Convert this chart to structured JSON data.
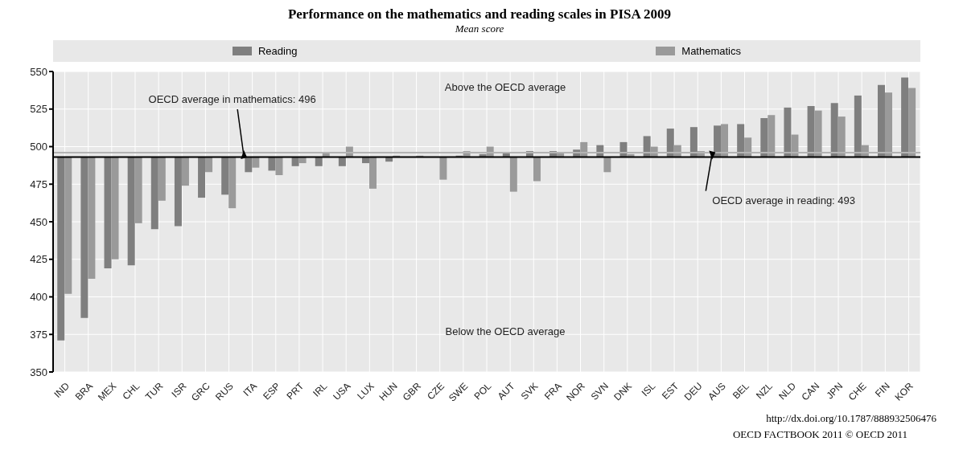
{
  "chart_data": {
    "type": "bar",
    "title": "Performance on the mathematics and reading scales in PISA 2009",
    "subtitle": "Mean score",
    "categories": [
      "IND",
      "BRA",
      "MEX",
      "CHL",
      "TUR",
      "ISR",
      "GRC",
      "RUS",
      "ITA",
      "ESP",
      "PRT",
      "IRL",
      "USA",
      "LUX",
      "HUN",
      "GBR",
      "CZE",
      "SWE",
      "POL",
      "AUT",
      "SVK",
      "FRA",
      "NOR",
      "SVN",
      "DNK",
      "ISL",
      "EST",
      "DEU",
      "AUS",
      "BEL",
      "NZL",
      "NLD",
      "CAN",
      "JPN",
      "CHE",
      "FIN",
      "KOR"
    ],
    "series": [
      {
        "name": "Reading",
        "color": "#7f7f7f",
        "base": [
          493,
          493,
          493,
          493,
          493,
          493,
          493,
          493,
          493,
          493,
          493,
          493,
          493,
          493,
          493,
          null,
          null,
          493,
          493,
          493,
          493,
          493,
          493,
          493,
          493,
          493,
          493,
          493,
          493,
          493,
          493,
          493,
          493,
          493,
          493,
          493,
          493
        ],
        "values": [
          -122,
          -107,
          -74,
          -72,
          -48,
          -46,
          -27,
          -25,
          -10,
          -9,
          -6,
          -6,
          -6,
          -4,
          -3,
          null,
          null,
          1,
          2,
          3,
          4,
          4,
          5,
          8,
          10,
          14,
          19,
          20,
          21,
          22,
          26,
          33,
          34,
          36,
          41,
          48,
          53
        ]
      },
      {
        "name": "Mathematics",
        "color": "#9a9a9a",
        "base": [
          493,
          493,
          493,
          493,
          493,
          493,
          493,
          493,
          493,
          493,
          493,
          493,
          493,
          493,
          493,
          493,
          493,
          493,
          493,
          493,
          493,
          493,
          493,
          493,
          493,
          493,
          493,
          493,
          493,
          493,
          493,
          493,
          493,
          493,
          493,
          493,
          493
        ],
        "values": [
          -91,
          -81,
          -68,
          -44,
          -29,
          -19,
          -10,
          -34,
          -7,
          -12,
          -4,
          3,
          7,
          -21,
          1,
          1,
          -15,
          4,
          7,
          -23,
          -16,
          3,
          10,
          -10,
          2,
          7,
          8,
          4,
          22,
          13,
          28,
          15,
          31,
          27,
          8,
          43,
          46
        ]
      }
    ],
    "ylim": [
      350,
      550
    ],
    "yticks": [
      350,
      375,
      400,
      425,
      450,
      475,
      500,
      525,
      550
    ],
    "grid": true,
    "legend": "top",
    "ref_lines": [
      {
        "axis": "y",
        "value": 496,
        "label": "OECD average in mathematics: 496",
        "color": "#b4b4b4"
      },
      {
        "axis": "y",
        "value": 493,
        "label": "OECD average in reading: 493",
        "color": "#000000"
      }
    ],
    "annotations": [
      "Above the OECD average",
      "Below the OECD average",
      "http://dx.doi.org/10.1787/888932506476",
      "OECD FACTBOOK 2011 © OECD 2011"
    ]
  }
}
